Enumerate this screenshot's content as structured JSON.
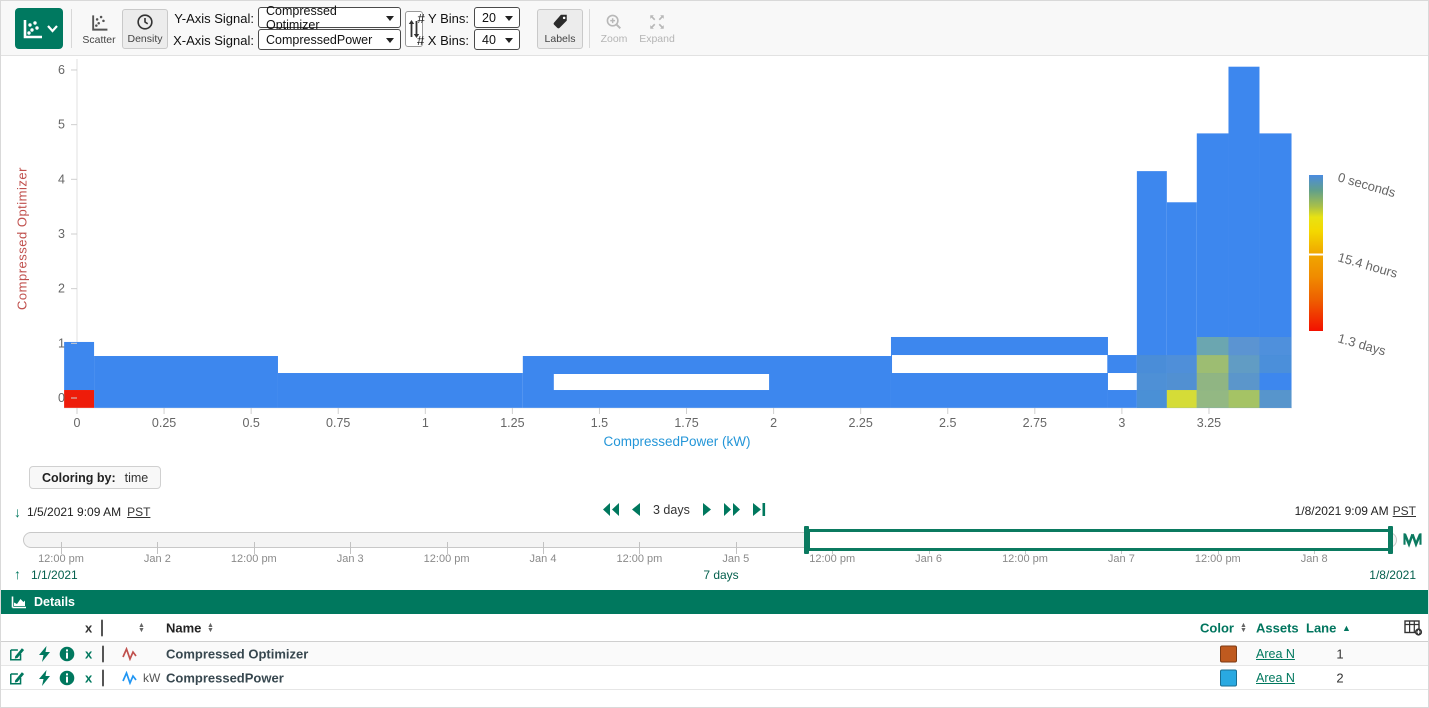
{
  "colors": {
    "accent": "#00785e",
    "heat_blue": "#3d87ee",
    "heat_red": "#ee1c0a",
    "y_title": "#c0504d",
    "x_title": "#2496d8"
  },
  "toolbar": {
    "scatter_label": "Scatter",
    "density_label": "Density",
    "y_axis_label": "Y-Axis Signal:",
    "y_axis_value": "Compressed Optimizer",
    "x_axis_label": "X-Axis Signal:",
    "x_axis_value": "CompressedPower",
    "y_bins_label": "# Y Bins:",
    "y_bins_value": "20",
    "x_bins_label": "# X Bins:",
    "x_bins_value": "40",
    "labels_label": "Labels",
    "zoom_label": "Zoom",
    "expand_label": "Expand"
  },
  "chart_data": {
    "type": "heatmap",
    "xlabel": "CompressedPower (kW)",
    "ylabel": "Compressed Optimizer",
    "x_bins": 40,
    "y_bins": 20,
    "xlim": [
      -0.04,
      3.49
    ],
    "ylim": [
      -0.18,
      6.26
    ],
    "x_ticks": [
      {
        "v": 0,
        "t": "0"
      },
      {
        "v": 0.25,
        "t": "0.25"
      },
      {
        "v": 0.5,
        "t": "0.5"
      },
      {
        "v": 0.75,
        "t": "0.75"
      },
      {
        "v": 1,
        "t": "1"
      },
      {
        "v": 1.25,
        "t": "1.25"
      },
      {
        "v": 1.5,
        "t": "1.5"
      },
      {
        "v": 1.75,
        "t": "1.75"
      },
      {
        "v": 2,
        "t": "2"
      },
      {
        "v": 2.25,
        "t": "2.25"
      },
      {
        "v": 2.5,
        "t": "2.5"
      },
      {
        "v": 2.75,
        "t": "2.75"
      },
      {
        "v": 3,
        "t": "3"
      },
      {
        "v": 3.25,
        "t": "3.25"
      }
    ],
    "y_ticks": [
      {
        "v": 0,
        "t": "0"
      },
      {
        "v": 1,
        "t": "1"
      },
      {
        "v": 2,
        "t": "2"
      },
      {
        "v": 3,
        "t": "3"
      },
      {
        "v": 4,
        "t": "4"
      },
      {
        "v": 5,
        "t": "5"
      },
      {
        "v": 6,
        "t": "6"
      }
    ],
    "coloring_by": "time",
    "legend": {
      "labels": [
        "0 seconds",
        "15.4 hours",
        "1.3 days"
      ],
      "gradient": [
        {
          "o": 0,
          "c": "#4a8be0"
        },
        {
          "o": 0.1,
          "c": "#62a08a"
        },
        {
          "o": 0.2,
          "c": "#a7bf4a"
        },
        {
          "o": 0.27,
          "c": "#e8e213"
        },
        {
          "o": 0.36,
          "c": "#f4d800"
        },
        {
          "o": 0.5,
          "c": "#f0a800"
        },
        {
          "o": 0.65,
          "c": "#f08c00"
        },
        {
          "o": 0.8,
          "c": "#ee5f00"
        },
        {
          "o": 1,
          "c": "#f31000"
        }
      ]
    },
    "cells": [
      {
        "x1": -0.037,
        "x2": 0.049,
        "y1": 0.146,
        "y2": 1.025,
        "c": "b"
      },
      {
        "x1": 0.049,
        "x2": 0.577,
        "y1": -0.18,
        "y2": 0.768,
        "c": "b"
      },
      {
        "x1": 0.577,
        "x2": 1.28,
        "y1": -0.18,
        "y2": 0.457,
        "c": "b"
      },
      {
        "x1": 1.28,
        "x2": 2.337,
        "y1": -0.18,
        "y2": 0.768,
        "c": "b"
      },
      {
        "x1": 2.337,
        "x2": 2.96,
        "y1": -0.18,
        "y2": 1.116,
        "c": "b"
      },
      {
        "x1": 2.96,
        "x2": 3.043,
        "y1": -0.18,
        "y2": 0.146,
        "c": "b"
      },
      {
        "x1": 2.96,
        "x2": 3.043,
        "y1": 0.457,
        "y2": 0.786,
        "c": "b"
      },
      {
        "x1": 3.043,
        "x2": 3.129,
        "y1": -0.18,
        "y2": 4.15,
        "c": "b"
      },
      {
        "x1": 3.129,
        "x2": 3.215,
        "y1": -0.18,
        "y2": 3.58,
        "c": "b"
      },
      {
        "x1": 3.215,
        "x2": 3.306,
        "y1": -0.18,
        "y2": 4.84,
        "c": "b"
      },
      {
        "x1": 3.306,
        "x2": 3.395,
        "y1": -0.18,
        "y2": 6.06,
        "c": "b"
      },
      {
        "x1": 3.395,
        "x2": 3.487,
        "y1": -0.18,
        "y2": 4.84,
        "c": "b"
      },
      {
        "x1": -0.037,
        "x2": 0.049,
        "y1": -0.18,
        "y2": 0.146,
        "c": "#ee1c0a"
      },
      {
        "x1": 1.369,
        "x2": 1.987,
        "y1": 0.146,
        "y2": 0.439,
        "c": "#ffffff"
      },
      {
        "x1": 2.34,
        "x2": 2.958,
        "y1": 0.457,
        "y2": 0.786,
        "c": "#ffffff"
      },
      {
        "x1": 3.043,
        "x2": 3.129,
        "y1": -0.18,
        "y2": 0.146,
        "c": "#4a90d6"
      },
      {
        "x1": 3.043,
        "x2": 3.129,
        "y1": 0.146,
        "y2": 0.457,
        "c": "#4e90d6"
      },
      {
        "x1": 3.043,
        "x2": 3.129,
        "y1": 0.457,
        "y2": 0.786,
        "c": "#4a8dd8"
      },
      {
        "x1": 3.129,
        "x2": 3.215,
        "y1": -0.18,
        "y2": 0.146,
        "c": "#d5dc37"
      },
      {
        "x1": 3.129,
        "x2": 3.215,
        "y1": 0.146,
        "y2": 0.457,
        "c": "#5190d2"
      },
      {
        "x1": 3.129,
        "x2": 3.215,
        "y1": 0.457,
        "y2": 0.786,
        "c": "#4f8fd9"
      },
      {
        "x1": 3.215,
        "x2": 3.306,
        "y1": -0.18,
        "y2": 0.146,
        "c": "#93b883"
      },
      {
        "x1": 3.215,
        "x2": 3.306,
        "y1": 0.146,
        "y2": 0.457,
        "c": "#90b583"
      },
      {
        "x1": 3.215,
        "x2": 3.306,
        "y1": 0.457,
        "y2": 0.786,
        "c": "#9dbd72"
      },
      {
        "x1": 3.215,
        "x2": 3.306,
        "y1": 0.786,
        "y2": 1.116,
        "c": "#6ba6b0"
      },
      {
        "x1": 3.306,
        "x2": 3.395,
        "y1": -0.18,
        "y2": 0.146,
        "c": "#a5c365"
      },
      {
        "x1": 3.306,
        "x2": 3.395,
        "y1": 0.146,
        "y2": 0.457,
        "c": "#5b96cb"
      },
      {
        "x1": 3.306,
        "x2": 3.395,
        "y1": 0.457,
        "y2": 0.786,
        "c": "#619cc4"
      },
      {
        "x1": 3.306,
        "x2": 3.395,
        "y1": 0.786,
        "y2": 1.116,
        "c": "#5b94d2"
      },
      {
        "x1": 3.395,
        "x2": 3.487,
        "y1": -0.18,
        "y2": 0.146,
        "c": "#5795cc"
      },
      {
        "x1": 3.395,
        "x2": 3.487,
        "y1": 0.457,
        "y2": 0.786,
        "c": "#4b8fda"
      },
      {
        "x1": 3.395,
        "x2": 3.487,
        "y1": 0.786,
        "y2": 1.116,
        "c": "#4f90dc"
      }
    ]
  },
  "coloring": {
    "label": "Coloring by:",
    "value": "time"
  },
  "range_nav": {
    "start": "1/5/2021 9:09 AM",
    "start_tz": "PST",
    "end": "1/8/2021 9:09 AM",
    "end_tz": "PST",
    "step": "3 days"
  },
  "timeline": {
    "labels": [
      "12:00 pm",
      "Jan 2",
      "12:00 pm",
      "Jan 3",
      "12:00 pm",
      "Jan 4",
      "12:00 pm",
      "Jan 5",
      "12:00 pm",
      "Jan 6",
      "12:00 pm",
      "Jan 7",
      "12:00 pm",
      "Jan 8"
    ],
    "full_start": "1/1/2021",
    "full_duration": "7 days",
    "full_end": "1/8/2021"
  },
  "details": {
    "title": "Details",
    "header": {
      "remove": "x",
      "name": "Name",
      "color": "Color",
      "assets": "Assets",
      "lane": "Lane"
    },
    "rows": [
      {
        "unit": "",
        "name": "Compressed Optimizer",
        "color": "#bf5a1f",
        "wave": "#c0504d",
        "asset": "Area N",
        "lane": "1"
      },
      {
        "unit": "kW",
        "name": "CompressedPower",
        "color": "#29a9e1",
        "wave": "#2196f3",
        "asset": "Area N",
        "lane": "2"
      }
    ]
  }
}
